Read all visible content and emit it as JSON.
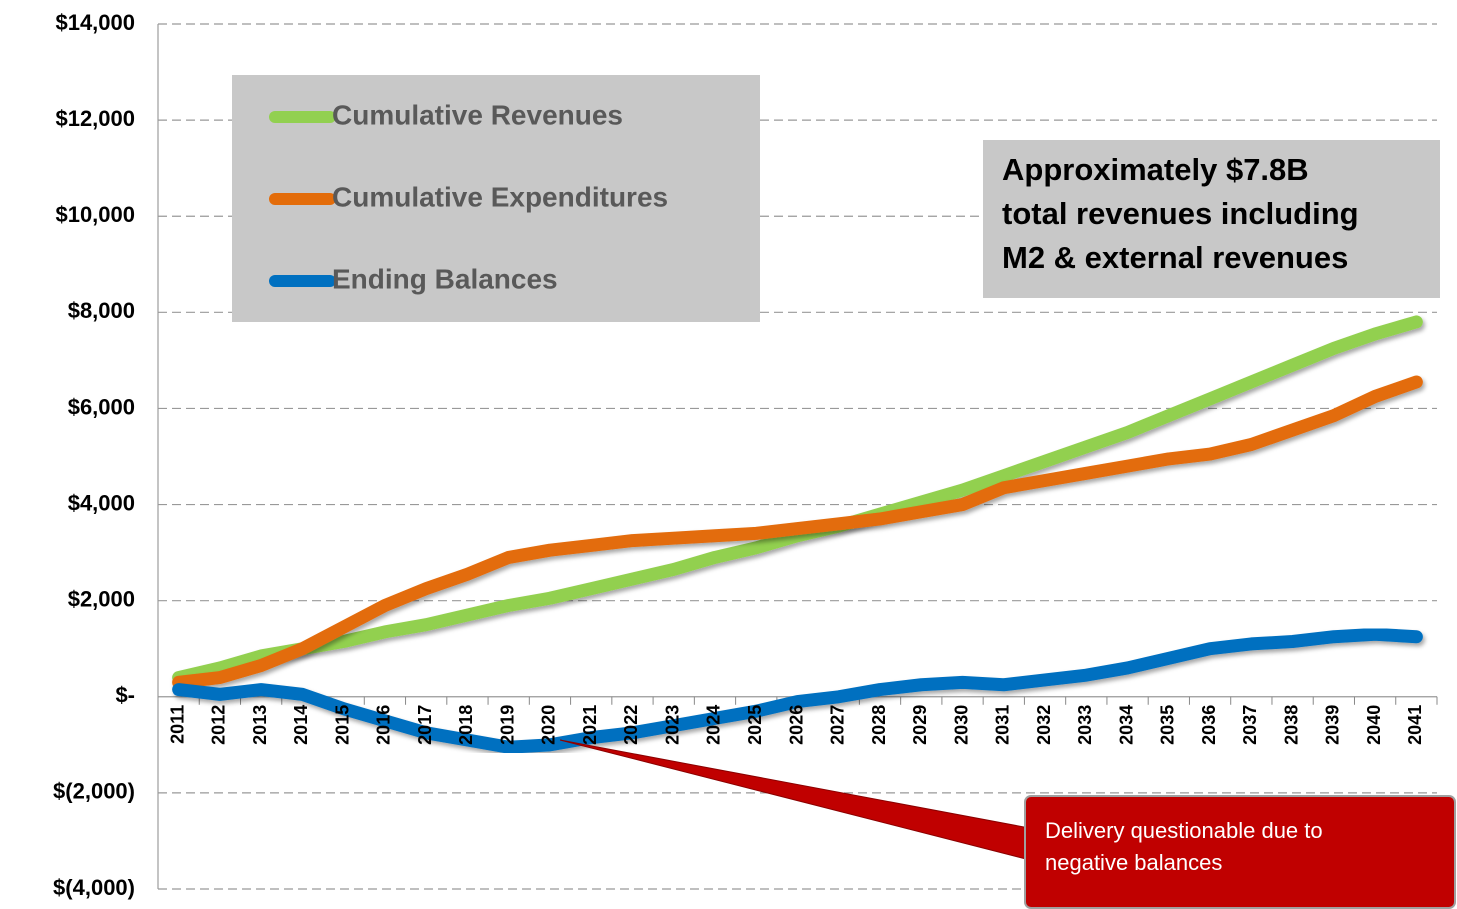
{
  "chart_data": {
    "type": "line",
    "categories": [
      "2011",
      "2012",
      "2013",
      "2014",
      "2015",
      "2016",
      "2017",
      "2018",
      "2019",
      "2020",
      "2021",
      "2022",
      "2023",
      "2024",
      "2025",
      "2026",
      "2027",
      "2028",
      "2029",
      "2030",
      "2031",
      "2032",
      "2033",
      "2034",
      "2035",
      "2036",
      "2037",
      "2038",
      "2039",
      "2040",
      "2041"
    ],
    "series": [
      {
        "name": "Cumulative Revenues",
        "color": "#92d050",
        "values": [
          400,
          600,
          850,
          1000,
          1150,
          1350,
          1500,
          1700,
          1900,
          2050,
          2250,
          2450,
          2650,
          2900,
          3100,
          3350,
          3550,
          3800,
          4050,
          4300,
          4600,
          4900,
          5200,
          5500,
          5850,
          6200,
          6550,
          6900,
          7250,
          7550,
          7800
        ]
      },
      {
        "name": "Cumulative Expenditures",
        "color": "#e36c0a",
        "values": [
          300,
          400,
          650,
          1000,
          1450,
          1900,
          2250,
          2550,
          2900,
          3050,
          3150,
          3250,
          3300,
          3350,
          3400,
          3500,
          3600,
          3700,
          3850,
          4000,
          4350,
          4500,
          4650,
          4800,
          4950,
          5050,
          5250,
          5550,
          5850,
          6250,
          6550
        ]
      },
      {
        "name": "Ending Balances",
        "color": "#0070c0",
        "values": [
          150,
          50,
          150,
          50,
          -250,
          -500,
          -750,
          -900,
          -1050,
          -1000,
          -850,
          -750,
          -600,
          -450,
          -300,
          -100,
          0,
          150,
          250,
          300,
          250,
          350,
          450,
          600,
          800,
          1000,
          1100,
          1150,
          1250,
          1300,
          1250
        ]
      }
    ],
    "ylim": [
      -4000,
      14000
    ],
    "yticks": [
      {
        "value": -4000,
        "label": "$(4,000)"
      },
      {
        "value": -2000,
        "label": "$(2,000)"
      },
      {
        "value": 0,
        "label": "$-"
      },
      {
        "value": 2000,
        "label": "$2,000"
      },
      {
        "value": 4000,
        "label": "$4,000"
      },
      {
        "value": 6000,
        "label": "$6,000"
      },
      {
        "value": 8000,
        "label": "$8,000"
      },
      {
        "value": 10000,
        "label": "$10,000"
      },
      {
        "value": 12000,
        "label": "$12,000"
      },
      {
        "value": 14000,
        "label": "$14,000"
      }
    ],
    "grid": true,
    "legend": "upper left",
    "annotation": [
      "Approximately $7.8B",
      "total revenues including",
      "M2 & external revenues"
    ],
    "callout": [
      "Delivery questionable due to",
      "negative balances"
    ]
  }
}
